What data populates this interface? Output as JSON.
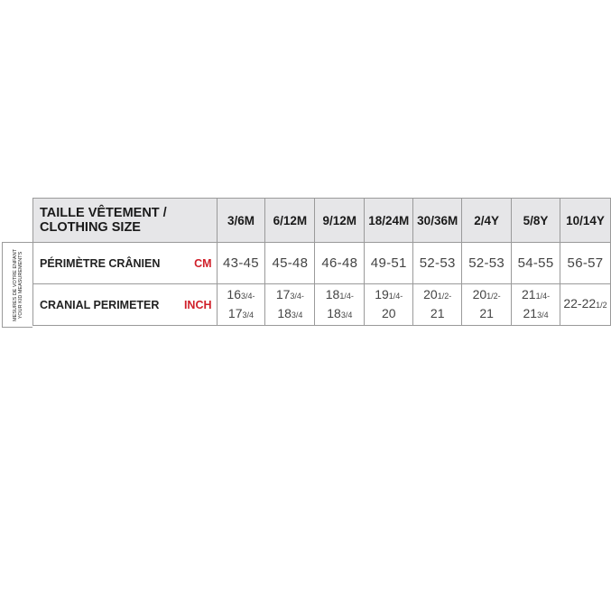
{
  "header": {
    "title_line1": "TAILLE VÊTEMENT /",
    "title_line2": "CLOTHING SIZE"
  },
  "side_label": {
    "line1": "MESURES DE VOTRE ENFANT",
    "line2": "YOUR KID MEASUREMENTS"
  },
  "sizes": [
    "3/6M",
    "6/12M",
    "9/12M",
    "18/24M",
    "30/36M",
    "2/4Y",
    "5/8Y",
    "10/14Y"
  ],
  "rows": [
    {
      "label": "PÉRIMÈTRE CRÂNIEN",
      "unit": "CM",
      "values": [
        "43-45",
        "45-48",
        "46-48",
        "49-51",
        "52-53",
        "52-53",
        "54-55",
        "56-57"
      ]
    },
    {
      "label": "CRANIAL PERIMETER",
      "unit": "INCH",
      "values": [
        {
          "a": "16",
          "af": "3/4-",
          "b": "17",
          "bf": "3/4"
        },
        {
          "a": "17",
          "af": "3/4-",
          "b": "18",
          "bf": "3/4"
        },
        {
          "a": "18",
          "af": "1/4-",
          "b": "18",
          "bf": "3/4"
        },
        {
          "a": "19",
          "af": "1/4-",
          "b": "20",
          "bf": ""
        },
        {
          "a": "20",
          "af": "1/2-",
          "b": "21",
          "bf": ""
        },
        {
          "a": "20",
          "af": "1/2-",
          "b": "21",
          "bf": ""
        },
        {
          "a": "21",
          "af": "1/4-",
          "b": "21",
          "bf": "3/4"
        },
        {
          "a": "22-22",
          "af": "1/2",
          "b": "",
          "bf": ""
        }
      ]
    }
  ],
  "colors": {
    "header_bg": "#e6e6e8",
    "unit_red": "#d0202a",
    "border": "#9a9a9a"
  }
}
